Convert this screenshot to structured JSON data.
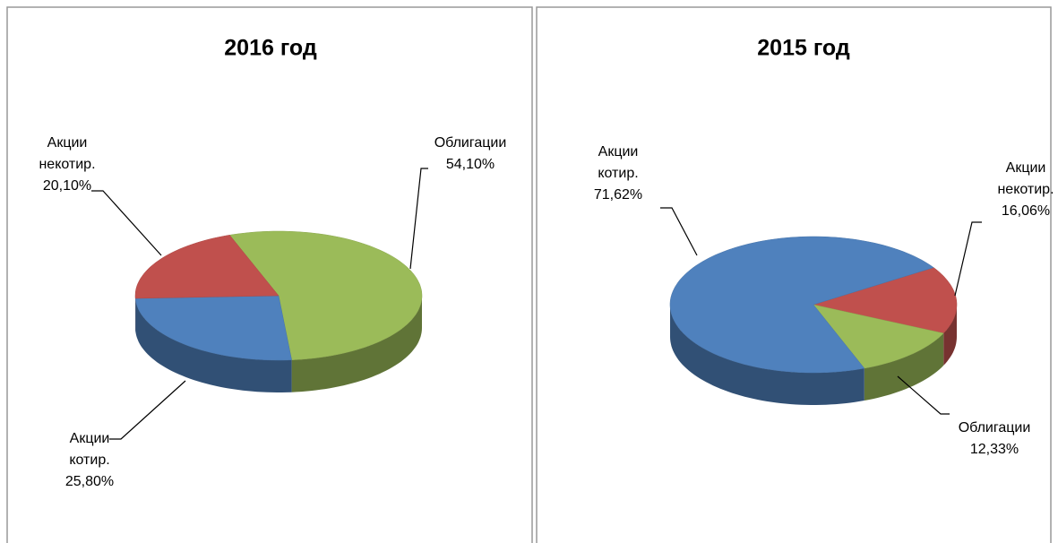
{
  "chart_data": [
    {
      "type": "pie3d",
      "title": "2016 год",
      "categories": [
        "Облигации",
        "Акции котир.",
        "Акции некотир."
      ],
      "values": [
        54.1,
        25.8,
        20.1
      ],
      "value_labels": [
        "54,10%",
        "25,80%",
        "20,10%"
      ],
      "colors": [
        "#9bbb59",
        "#4f81bd",
        "#c0504d"
      ]
    },
    {
      "type": "pie3d",
      "title": "2015 год",
      "categories": [
        "Акции некотир.",
        "Облигации",
        "Акции котир."
      ],
      "values": [
        16.06,
        12.33,
        71.62
      ],
      "value_labels": [
        "16,06%",
        "12,33%",
        "71,62%"
      ],
      "colors": [
        "#c0504d",
        "#9bbb59",
        "#4f81bd"
      ]
    }
  ]
}
